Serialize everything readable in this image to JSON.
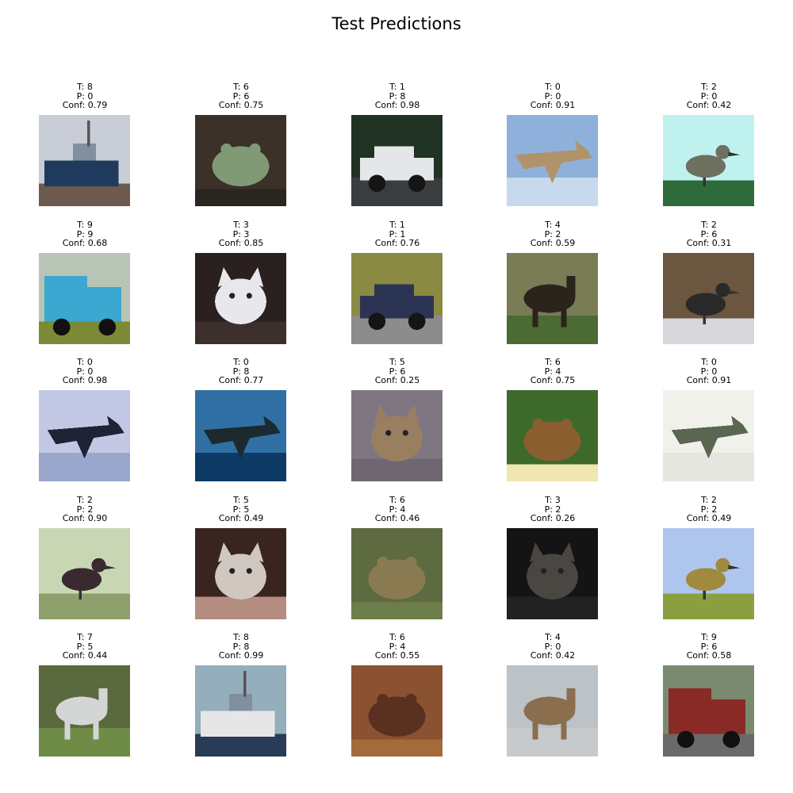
{
  "figure": {
    "title": "Test Predictions"
  },
  "panels": [
    {
      "true_text": "T: 8",
      "pred_text": "P: 0",
      "conf_text": "Conf: 0.79",
      "subject": "ship",
      "bg": "#c9cdd6",
      "fg": "#1f3a5c",
      "ground": "#6d5a4e"
    },
    {
      "true_text": "T: 6",
      "pred_text": "P: 6",
      "conf_text": "Conf: 0.75",
      "subject": "frog",
      "bg": "#3b3129",
      "fg": "#7f9a75",
      "ground": "#2b2520"
    },
    {
      "true_text": "T: 1",
      "pred_text": "P: 8",
      "conf_text": "Conf: 0.98",
      "subject": "car",
      "bg": "#203224",
      "fg": "#e4e6e8",
      "ground": "#3a3d3f"
    },
    {
      "true_text": "T: 0",
      "pred_text": "P: 0",
      "conf_text": "Conf: 0.91",
      "subject": "plane",
      "bg": "#8fb0da",
      "fg": "#b0936a",
      "ground": "#c8d9ee"
    },
    {
      "true_text": "T: 2",
      "pred_text": "P: 0",
      "conf_text": "Conf: 0.42",
      "subject": "bird",
      "bg": "#bff2ee",
      "fg": "#6e7060",
      "ground": "#2f6a3b"
    },
    {
      "true_text": "T: 9",
      "pred_text": "P: 9",
      "conf_text": "Conf: 0.68",
      "subject": "truck",
      "bg": "#b8c4b5",
      "fg": "#3aa8d0",
      "ground": "#7c8a36"
    },
    {
      "true_text": "T: 3",
      "pred_text": "P: 3",
      "conf_text": "Conf: 0.85",
      "subject": "cat",
      "bg": "#2a2020",
      "fg": "#e8e8ec",
      "ground": "#3d2f2c"
    },
    {
      "true_text": "T: 1",
      "pred_text": "P: 1",
      "conf_text": "Conf: 0.76",
      "subject": "car",
      "bg": "#8a8a42",
      "fg": "#2c3455",
      "ground": "#8c8c8c"
    },
    {
      "true_text": "T: 4",
      "pred_text": "P: 2",
      "conf_text": "Conf: 0.59",
      "subject": "deer",
      "bg": "#7a7c56",
      "fg": "#2a241c",
      "ground": "#4c6a34"
    },
    {
      "true_text": "T: 2",
      "pred_text": "P: 6",
      "conf_text": "Conf: 0.31",
      "subject": "bird",
      "bg": "#6b5640",
      "fg": "#2a2a2a",
      "ground": "#d8d8dc"
    },
    {
      "true_text": "T: 0",
      "pred_text": "P: 0",
      "conf_text": "Conf: 0.98",
      "subject": "plane",
      "bg": "#c2c8e4",
      "fg": "#1e2436",
      "ground": "#9aa6cc"
    },
    {
      "true_text": "T: 0",
      "pred_text": "P: 8",
      "conf_text": "Conf: 0.77",
      "subject": "plane",
      "bg": "#2f6fa4",
      "fg": "#1b2a2e",
      "ground": "#0e3a66"
    },
    {
      "true_text": "T: 5",
      "pred_text": "P: 6",
      "conf_text": "Conf: 0.25",
      "subject": "dog",
      "bg": "#7e7680",
      "fg": "#9a7e60",
      "ground": "#6e6670"
    },
    {
      "true_text": "T: 6",
      "pred_text": "P: 4",
      "conf_text": "Conf: 0.75",
      "subject": "frog",
      "bg": "#3d6a2a",
      "fg": "#8a5e2e",
      "ground": "#f0e6b0"
    },
    {
      "true_text": "T: 0",
      "pred_text": "P: 0",
      "conf_text": "Conf: 0.91",
      "subject": "plane",
      "bg": "#f1f1ec",
      "fg": "#5a6650",
      "ground": "#e6e6e0"
    },
    {
      "true_text": "T: 2",
      "pred_text": "P: 2",
      "conf_text": "Conf: 0.90",
      "subject": "bird",
      "bg": "#c8d6b4",
      "fg": "#3a2a30",
      "ground": "#8fa06c"
    },
    {
      "true_text": "T: 5",
      "pred_text": "P: 5",
      "conf_text": "Conf: 0.49",
      "subject": "dog",
      "bg": "#3a2420",
      "fg": "#d0c8c0",
      "ground": "#b48c80"
    },
    {
      "true_text": "T: 6",
      "pred_text": "P: 4",
      "conf_text": "Conf: 0.46",
      "subject": "frog",
      "bg": "#5e6a40",
      "fg": "#8a7a52",
      "ground": "#6e7e4a"
    },
    {
      "true_text": "T: 3",
      "pred_text": "P: 2",
      "conf_text": "Conf: 0.26",
      "subject": "cat",
      "bg": "#141414",
      "fg": "#4a4642",
      "ground": "#222222"
    },
    {
      "true_text": "T: 2",
      "pred_text": "P: 2",
      "conf_text": "Conf: 0.49",
      "subject": "bird",
      "bg": "#aec6ee",
      "fg": "#a08a3e",
      "ground": "#8aa040"
    },
    {
      "true_text": "T: 7",
      "pred_text": "P: 5",
      "conf_text": "Conf: 0.44",
      "subject": "horse",
      "bg": "#5a6a3e",
      "fg": "#d4d6d6",
      "ground": "#6e8c46"
    },
    {
      "true_text": "T: 8",
      "pred_text": "P: 8",
      "conf_text": "Conf: 0.99",
      "subject": "ship",
      "bg": "#94aebc",
      "fg": "#e6e6e6",
      "ground": "#283c58"
    },
    {
      "true_text": "T: 6",
      "pred_text": "P: 4",
      "conf_text": "Conf: 0.55",
      "subject": "frog",
      "bg": "#8a5230",
      "fg": "#5a3020",
      "ground": "#a46a3a"
    },
    {
      "true_text": "T: 4",
      "pred_text": "P: 0",
      "conf_text": "Conf: 0.42",
      "subject": "deer",
      "bg": "#bcc2c6",
      "fg": "#8a6e4e",
      "ground": "#c6cacc"
    },
    {
      "true_text": "T: 9",
      "pred_text": "P: 6",
      "conf_text": "Conf: 0.58",
      "subject": "truck",
      "bg": "#7a8a70",
      "fg": "#8a2a26",
      "ground": "#6a6a6a"
    }
  ]
}
